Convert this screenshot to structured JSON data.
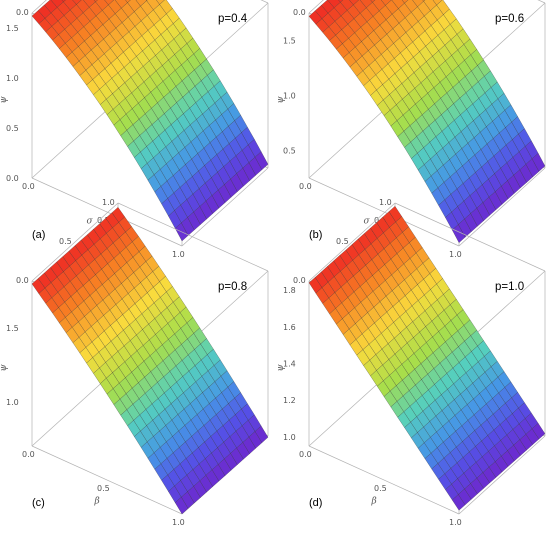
{
  "chart_data": [
    {
      "type": "surface",
      "panel_label": "(a)",
      "annotation": "p=0.4",
      "x_axis": {
        "label": "β",
        "ticks": [
          "0.0",
          "0.5",
          "1.0"
        ],
        "range": [
          0,
          1
        ]
      },
      "y_axis": {
        "label": "σ",
        "ticks": [
          "0.0",
          "0.5",
          "1.0"
        ],
        "range": [
          0,
          1
        ]
      },
      "z_axis": {
        "label": "ψ",
        "ticks": [
          "0.0",
          "0.5",
          "1.0",
          "1.5"
        ],
        "range": [
          0,
          1.65
        ]
      },
      "surface": {
        "z_at_beta_0": 1.62,
        "z_at_beta_1": 0.05,
        "curvature": "concave-down"
      }
    },
    {
      "type": "surface",
      "panel_label": "(b)",
      "annotation": "p=0.6",
      "x_axis": {
        "label": "β",
        "ticks": [
          "0.0",
          "0.5",
          "1.0"
        ],
        "range": [
          0,
          1
        ]
      },
      "y_axis": {
        "label": "σ",
        "ticks": [
          "0.0",
          "0.5",
          "1.0"
        ],
        "range": [
          0,
          1
        ]
      },
      "z_axis": {
        "label": "ψ",
        "ticks": [
          "0.5",
          "1.0",
          "1.5"
        ],
        "range": [
          0.25,
          1.75
        ]
      },
      "surface": {
        "z_at_beta_0": 1.72,
        "z_at_beta_1": 0.28,
        "curvature": "concave-down"
      }
    },
    {
      "type": "surface",
      "panel_label": "(c)",
      "annotation": "p=0.8",
      "x_axis": {
        "label": "β",
        "ticks": [
          "0.0",
          "0.5",
          "1.0"
        ],
        "range": [
          0,
          1
        ]
      },
      "y_axis": {
        "label": "σ",
        "ticks": [
          "0.0",
          "0.5",
          "1.0"
        ],
        "range": [
          0,
          1
        ]
      },
      "z_axis": {
        "label": "ψ",
        "ticks": [
          "1.0",
          "1.5"
        ],
        "range": [
          0.7,
          1.82
        ]
      },
      "surface": {
        "z_at_beta_0": 1.8,
        "z_at_beta_1": 0.7,
        "curvature": "nearly-linear"
      }
    },
    {
      "type": "surface",
      "panel_label": "(d)",
      "annotation": "p=1.0",
      "x_axis": {
        "label": "β",
        "ticks": [
          "0.0",
          "0.5",
          "1.0"
        ],
        "range": [
          0,
          1
        ]
      },
      "y_axis": {
        "label": "σ",
        "ticks": [
          "0.0",
          "0.5",
          "1.0"
        ],
        "range": [
          0,
          1
        ]
      },
      "z_axis": {
        "label": "ψ",
        "ticks": [
          "1.0",
          "1.2",
          "1.4",
          "1.6",
          "1.8"
        ],
        "range": [
          0.95,
          1.85
        ]
      },
      "surface": {
        "z_at_beta_0": 1.84,
        "z_at_beta_1": 0.97,
        "curvature": "linear"
      }
    }
  ]
}
